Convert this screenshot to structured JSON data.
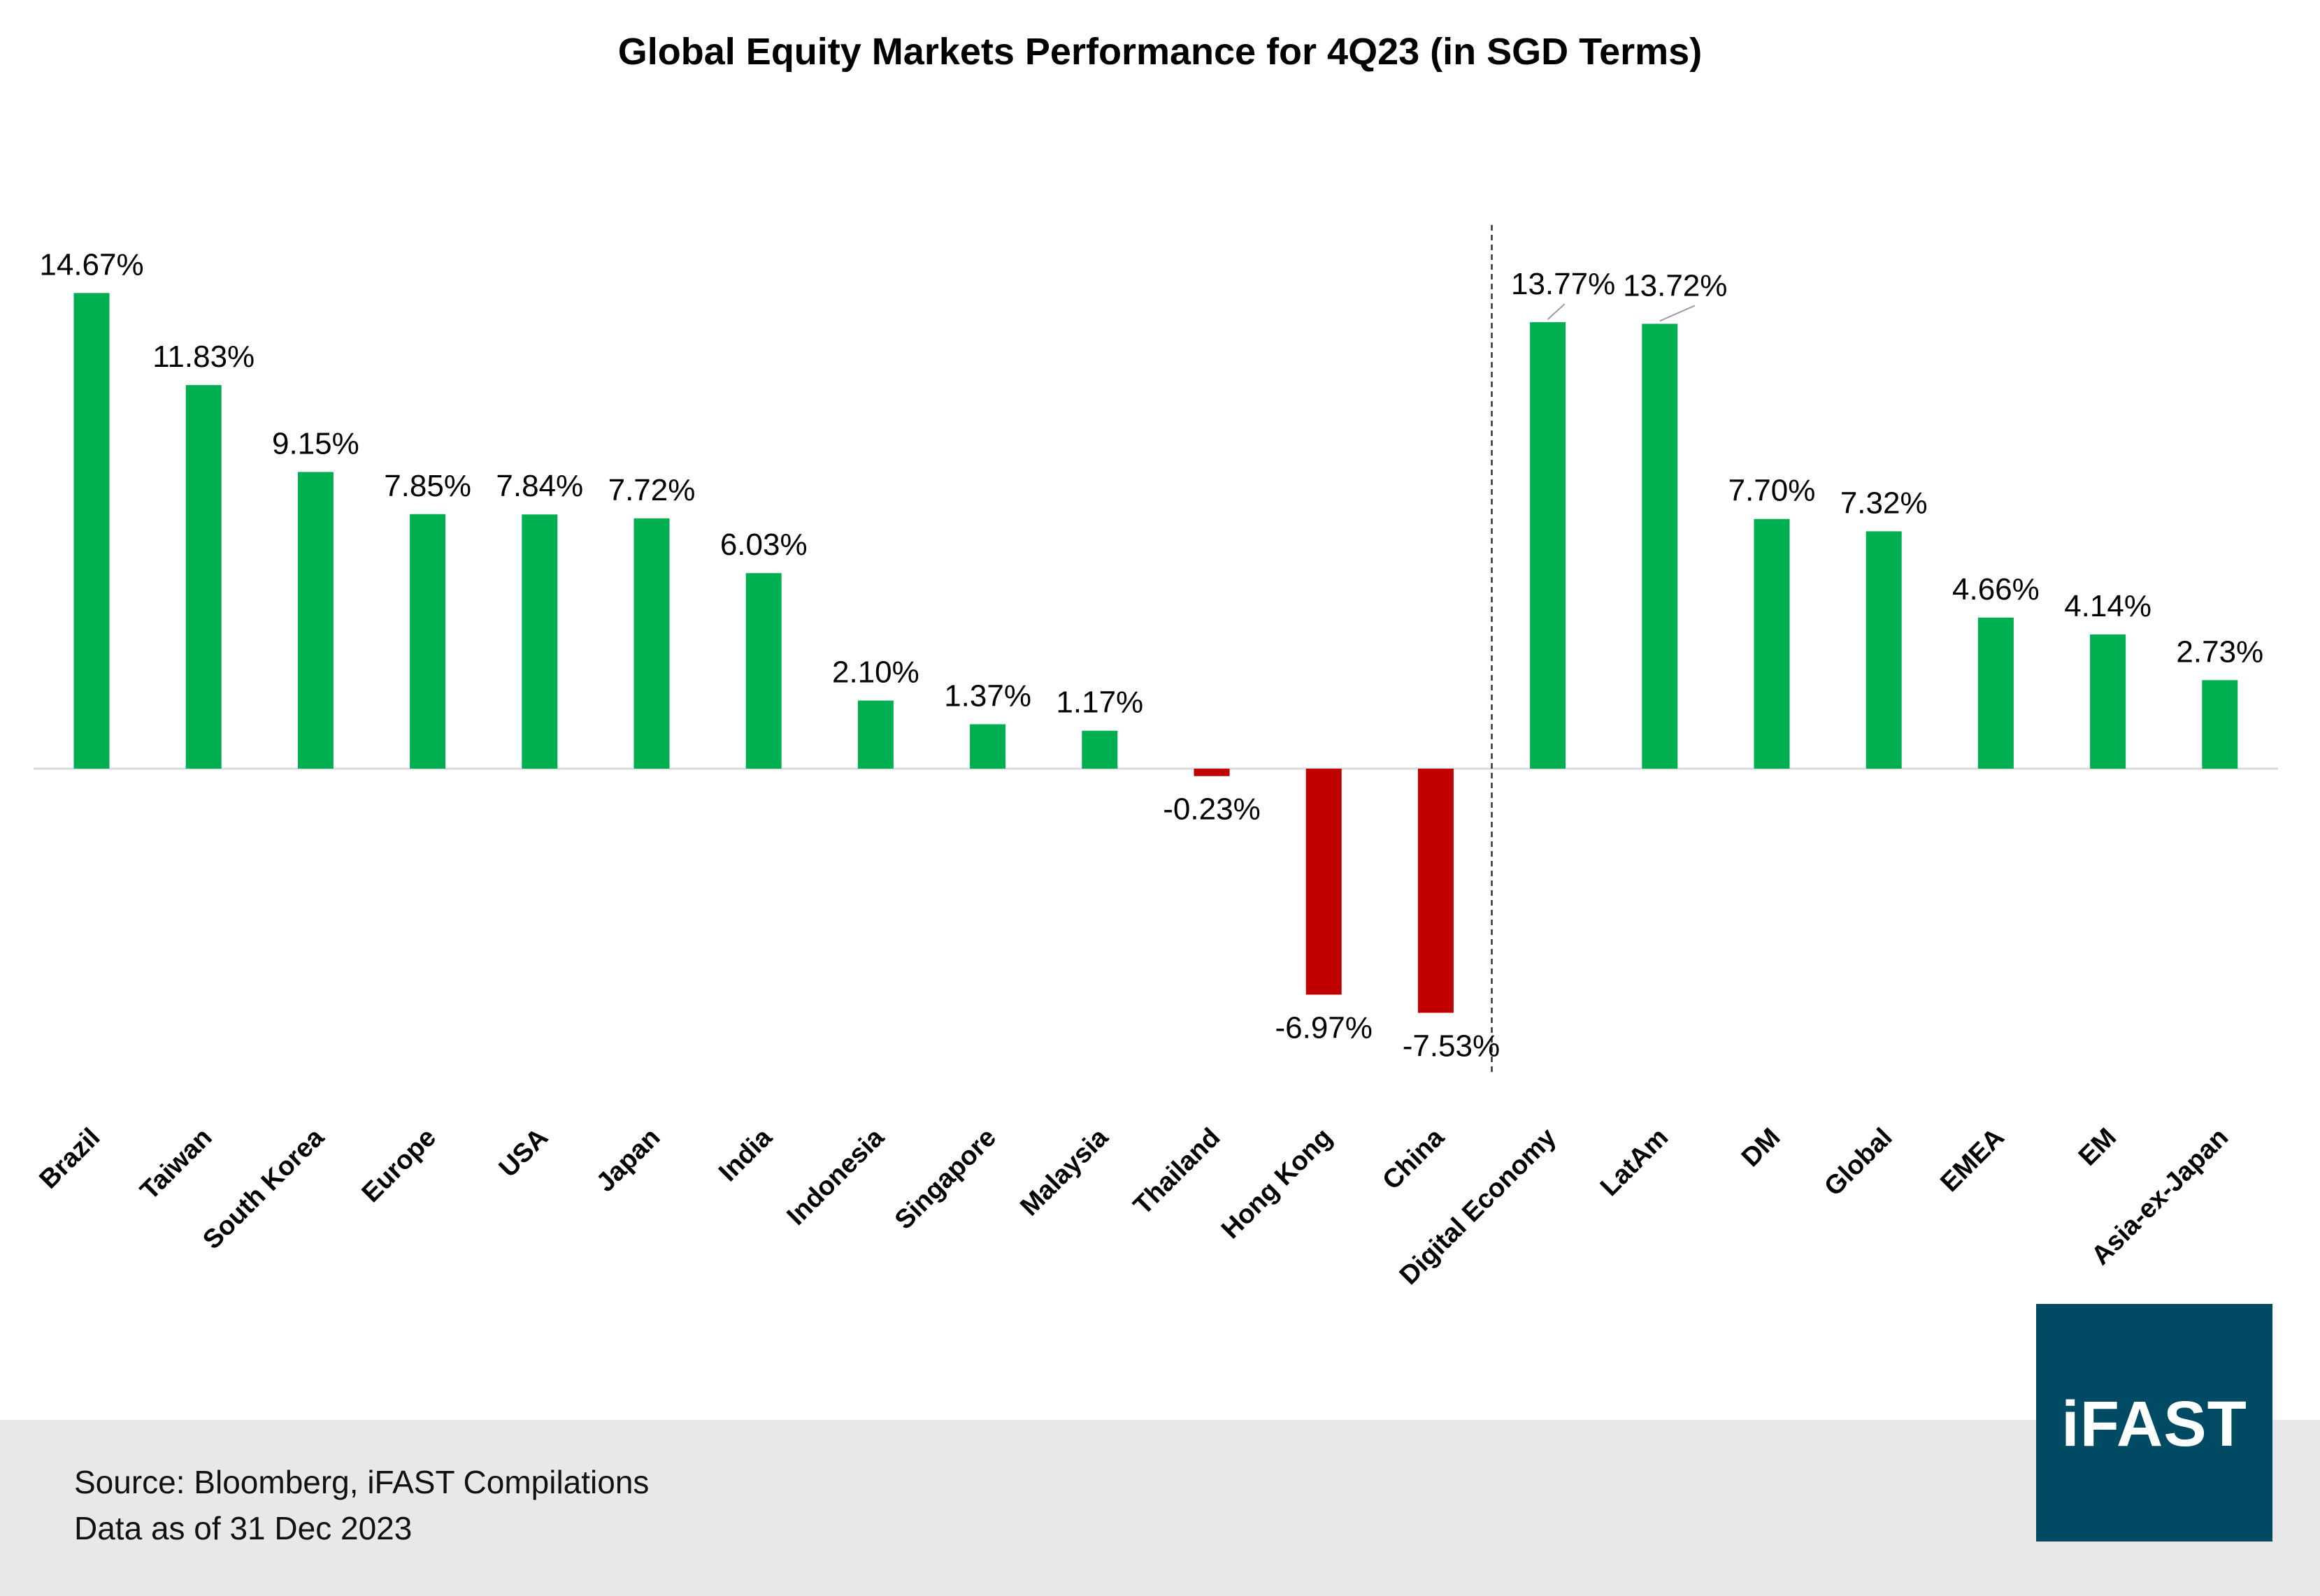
{
  "chart_data": {
    "type": "bar",
    "title": "Global Equity Markets Performance for 4Q23 (in SGD Terms)",
    "categories": [
      "Brazil",
      "Taiwan",
      "South Korea",
      "Europe",
      "USA",
      "Japan",
      "India",
      "Indonesia",
      "Singapore",
      "Malaysia",
      "Thailand",
      "Hong Kong",
      "China",
      "Digital Economy",
      "LatAm",
      "DM",
      "Global",
      "EMEA",
      "EM",
      "Asia-ex-Japan"
    ],
    "values": [
      14.67,
      11.83,
      9.15,
      7.85,
      7.84,
      7.72,
      6.03,
      2.1,
      1.37,
      1.17,
      -0.23,
      -6.97,
      -7.53,
      13.77,
      13.72,
      7.7,
      7.32,
      4.66,
      4.14,
      2.73
    ],
    "data_labels": [
      "14.67%",
      "11.83%",
      "9.15%",
      "7.85%",
      "7.84%",
      "7.72%",
      "6.03%",
      "2.10%",
      "1.37%",
      "1.17%",
      "-0.23%",
      "-6.97%",
      "-7.53%",
      "13.77%",
      "13.72%",
      "7.70%",
      "7.32%",
      "4.66%",
      "4.14%",
      "2.73%"
    ],
    "xlabel": "",
    "ylabel": "",
    "y_axis_visible": false,
    "grid": false,
    "legend": "none",
    "separator_after_category": "China",
    "colors": {
      "positive": "#00b050",
      "negative": "#c00000"
    }
  },
  "footer": {
    "source": "Source: Bloomberg, iFAST Compilations",
    "data_as_of": "Data as of 31 Dec 2023"
  },
  "logo": {
    "text": "iFAST",
    "color": "#004a63"
  }
}
